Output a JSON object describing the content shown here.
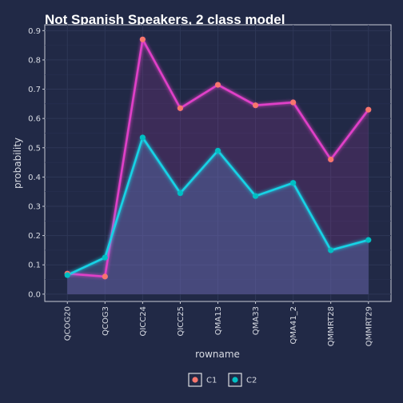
{
  "chart_data": {
    "type": "line",
    "title": "Not Spanish Speakers, 2 class model",
    "xlabel": "rowname",
    "ylabel": "probability",
    "categories": [
      "QCOG20",
      "QCOG3",
      "QICC24",
      "QICC25",
      "QMA13",
      "QMA33",
      "QMA41_2",
      "QMMRT28",
      "QMMRT29"
    ],
    "yticks": [
      "0.0",
      "0.1",
      "0.2",
      "0.3",
      "0.4",
      "0.5",
      "0.6",
      "0.7",
      "0.8",
      "0.9"
    ],
    "ylim": [
      -0.025,
      0.92
    ],
    "grid": true,
    "legend_position": "bottom",
    "series": [
      {
        "name": "C1",
        "color": "#f8766d",
        "line_color": "#e040c8",
        "values": [
          0.07,
          0.06,
          0.87,
          0.635,
          0.715,
          0.645,
          0.655,
          0.46,
          0.63
        ]
      },
      {
        "name": "C2",
        "color": "#00bfc4",
        "line_color": "#19d3e6",
        "values": [
          0.065,
          0.125,
          0.535,
          0.345,
          0.49,
          0.335,
          0.38,
          0.15,
          0.185
        ]
      }
    ]
  }
}
